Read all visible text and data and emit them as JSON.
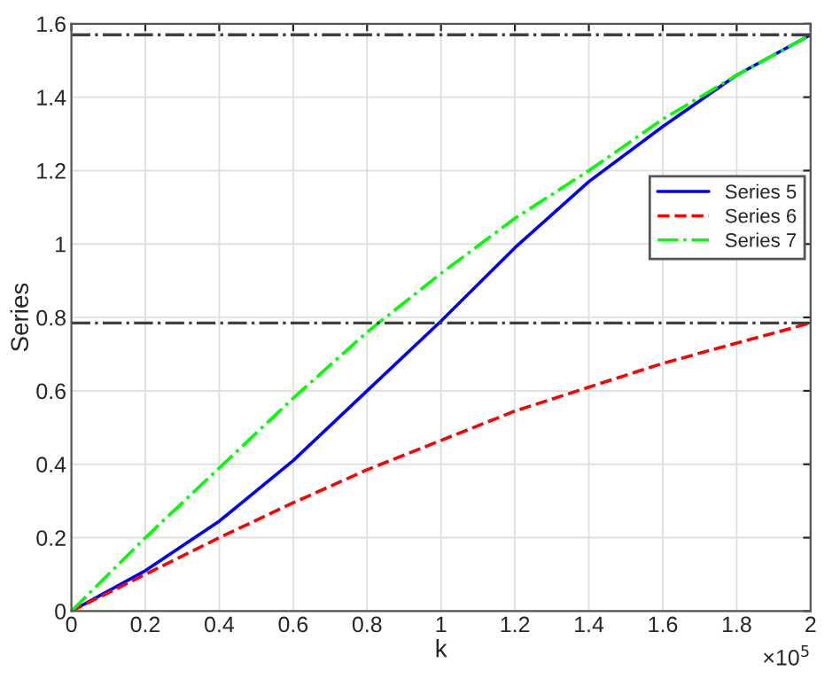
{
  "chart_data": {
    "type": "line",
    "xlabel": "k",
    "ylabel": "Series",
    "annotations": [
      "×10$^{5}$"
    ],
    "x": [
      0,
      0.2,
      0.4,
      0.6,
      0.8,
      1.0,
      1.2,
      1.4,
      1.6,
      1.8,
      2.0
    ],
    "series": [
      {
        "name": "Series 5",
        "color": "#0000ff",
        "line_style": "solid",
        "values": [
          0,
          0.11,
          0.245,
          0.41,
          0.6,
          0.79,
          0.99,
          1.17,
          1.32,
          1.46,
          1.57
        ]
      },
      {
        "name": "Series 6",
        "color": "#ff0000",
        "line_style": "dashed",
        "values": [
          0,
          0.1,
          0.2,
          0.295,
          0.385,
          0.465,
          0.545,
          0.61,
          0.675,
          0.73,
          0.785
        ]
      },
      {
        "name": "Series 7",
        "color": "#00ff00",
        "line_style": "dashdot",
        "values": [
          0,
          0.2,
          0.39,
          0.58,
          0.76,
          0.92,
          1.07,
          1.2,
          1.34,
          1.46,
          1.57
        ]
      }
    ],
    "ref_lines": [
      {
        "axis": "y",
        "value": 1.57,
        "color": "#404040",
        "line_style": "dashdot"
      },
      {
        "axis": "y",
        "value": 0.785,
        "color": "#404040",
        "line_style": "dashdot"
      }
    ],
    "xlim": [
      0,
      2
    ],
    "ylim": [
      0,
      1.6
    ],
    "xticks": [
      0,
      0.2,
      0.4,
      0.6,
      0.8,
      1,
      1.2,
      1.4,
      1.6,
      1.8,
      2
    ],
    "yticks": [
      0,
      0.2,
      0.4,
      0.6,
      0.8,
      1,
      1.2,
      1.4,
      1.6
    ],
    "grid": true,
    "legend": "right"
  }
}
